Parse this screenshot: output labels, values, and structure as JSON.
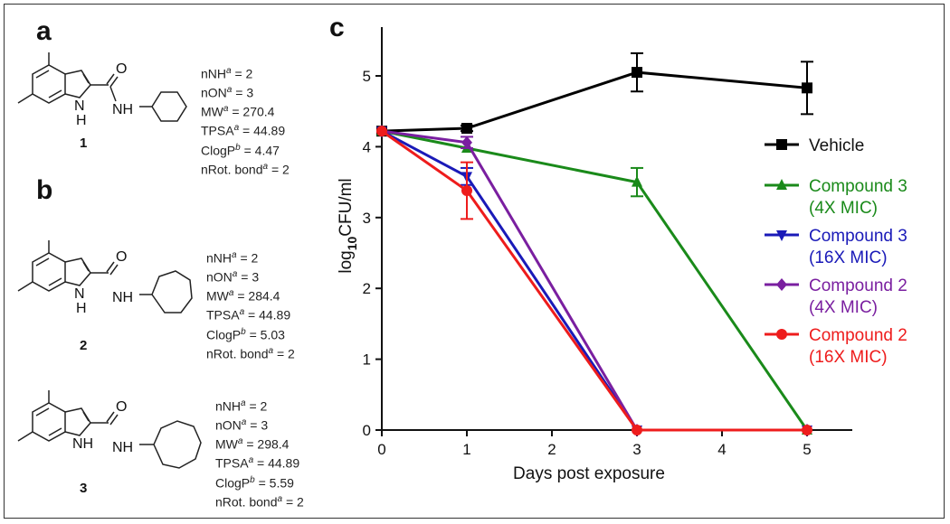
{
  "panels": {
    "a": "a",
    "b": "b",
    "c": "c"
  },
  "compounds": [
    {
      "id": "1",
      "props": [
        "nNH",
        "= 2",
        "nON",
        "= 3",
        "MW",
        "= 270.4",
        "TPSA",
        "= 44.89",
        "ClogP",
        "= 4.47",
        "nRot. bond",
        "= 2"
      ],
      "lines": [
        "nNH^a = 2",
        "nON^a = 3",
        "MW^a = 270.4",
        "TPSA^a = 44.89",
        "ClogP^b = 4.47",
        "nRot. bond^a = 2"
      ]
    },
    {
      "id": "2",
      "lines": [
        "nNH^a = 2",
        "nON^a = 3",
        "MW^a = 284.4",
        "TPSA^a = 44.89",
        "ClogP^b = 5.03",
        "nRot. bond^a = 2"
      ]
    },
    {
      "id": "3",
      "lines": [
        "nNH^a = 2",
        "nON^a = 3",
        "MW^a = 298.4",
        "TPSA^a = 44.89",
        "ClogP^b = 5.59",
        "nRot. bond^a = 2"
      ]
    }
  ],
  "structure_labels": {
    "o": "O",
    "nh": "NH",
    "n": "N",
    "h": "H"
  },
  "chart_data": {
    "type": "line",
    "title": "",
    "xlabel": "Days post exposure",
    "ylabel_main": "log",
    "ylabel_sub": "10",
    "ylabel_rest": "CFU/ml",
    "xlim": [
      0,
      5.5
    ],
    "ylim": [
      0,
      5.5
    ],
    "xticks": [
      0,
      1,
      2,
      3,
      4,
      5
    ],
    "yticks": [
      0,
      1,
      2,
      3,
      4,
      5
    ],
    "series": [
      {
        "name": "Vehicle",
        "name2": "",
        "color": "#000000",
        "marker": "square",
        "x": [
          0,
          1,
          3,
          5
        ],
        "y": [
          4.22,
          4.26,
          5.05,
          4.83
        ],
        "err": [
          0,
          0.04,
          0.27,
          0.37
        ]
      },
      {
        "name": "Compound 3",
        "name2": "(4X MIC)",
        "color": "#1a8a1a",
        "marker": "triangle-up",
        "x": [
          0,
          1,
          3,
          5
        ],
        "y": [
          4.22,
          3.98,
          3.5,
          0
        ],
        "err": [
          0,
          0,
          0.2,
          0
        ]
      },
      {
        "name": "Compound 3",
        "name2": "(16X MIC)",
        "color": "#1a1ab8",
        "marker": "triangle-down",
        "x": [
          0,
          1,
          3,
          5
        ],
        "y": [
          4.22,
          3.58,
          0,
          0
        ],
        "err": [
          0,
          0.12,
          0,
          0
        ]
      },
      {
        "name": "Compound 2",
        "name2": "(4X MIC)",
        "color": "#7a1fa0",
        "marker": "diamond",
        "x": [
          0,
          1,
          3,
          5
        ],
        "y": [
          4.22,
          4.06,
          0,
          0
        ],
        "err": [
          0,
          0.08,
          0,
          0
        ]
      },
      {
        "name": "Compound 2",
        "name2": "(16X MIC)",
        "color": "#ee1c1c",
        "marker": "circle",
        "x": [
          0,
          1,
          3,
          5
        ],
        "y": [
          4.22,
          3.38,
          0,
          0
        ],
        "err": [
          0,
          0.4,
          0,
          0
        ]
      }
    ],
    "legend": "right"
  }
}
